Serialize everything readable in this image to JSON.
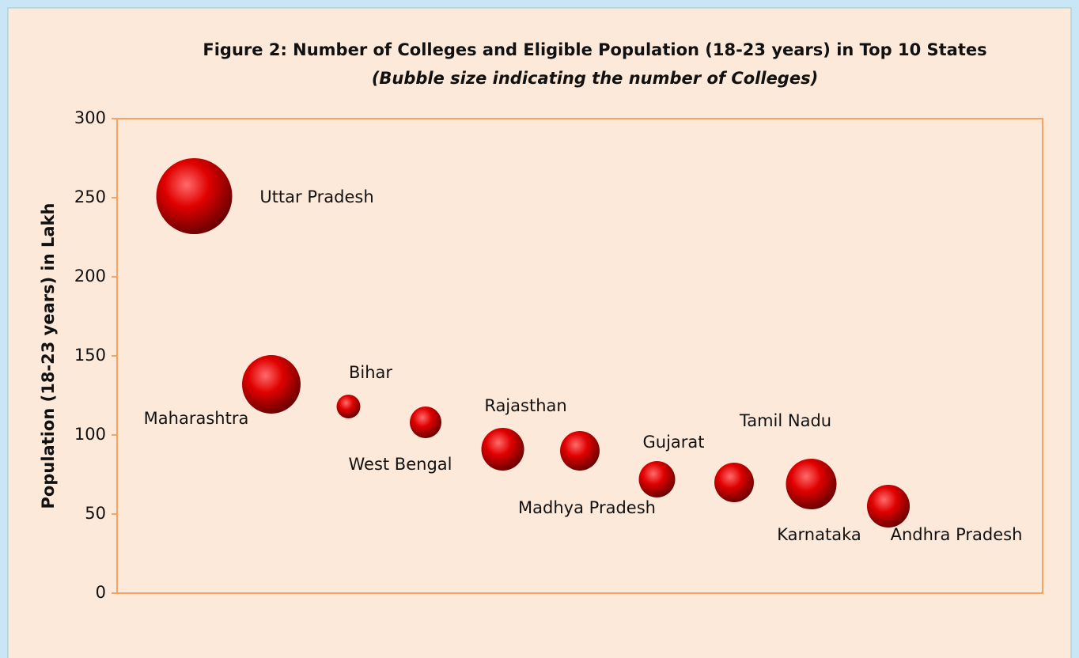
{
  "chart_data": {
    "type": "bubble",
    "title": "Figure 2: Number of Colleges and Eligible Population (18-23 years) in Top 10 States",
    "subtitle": "(Bubble size indicating the number of Colleges)",
    "y_label": "Population (18-23 years) in Lakh",
    "categories": [
      "Uttar Pradesh",
      "Maharashtra",
      "Bihar",
      "West Bengal",
      "Rajasthan",
      "Madhya Pradesh",
      "Gujarat",
      "Tamil Nadu",
      "Karnataka",
      "Andhra Pradesh"
    ],
    "x": [
      1,
      2,
      3,
      4,
      5,
      6,
      7,
      8,
      9,
      10
    ],
    "values": [
      251,
      132,
      118,
      108,
      91,
      90,
      72,
      70,
      69,
      55
    ],
    "sizes": [
      6500,
      3860,
      635,
      1130,
      2060,
      1760,
      1490,
      1760,
      2890,
      2060
    ],
    "color": "#d40000",
    "xlim": [
      0,
      12
    ],
    "ylim": [
      0,
      300
    ],
    "yticks": [
      0,
      50,
      100,
      150,
      200,
      250,
      300
    ],
    "grid": false
  }
}
